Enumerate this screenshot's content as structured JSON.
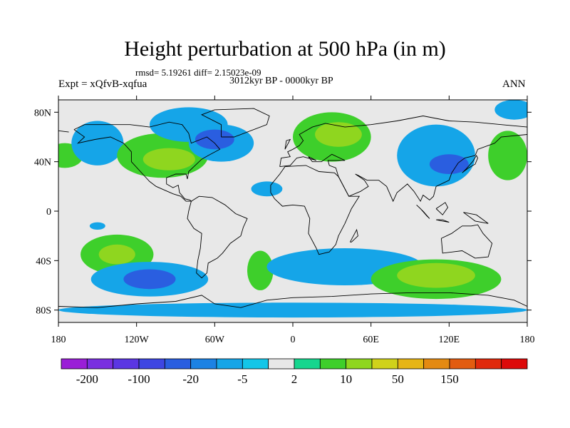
{
  "title": "Height perturbation at 500 hPa (in m)",
  "stats": "rmsd= 5.19261 diff= 2.15023e-09",
  "experiment": "Expt = xQfvB-xqfua",
  "period": "3012kyr BP - 0000kyr BP",
  "season": "ANN",
  "map": {
    "background_color": "#e8e8e8",
    "lon_range": [
      -180,
      180
    ],
    "lat_range": [
      -90,
      90
    ],
    "lon_ticks": [
      {
        "value": -180,
        "label": "180"
      },
      {
        "value": -120,
        "label": "120W"
      },
      {
        "value": -60,
        "label": "60W"
      },
      {
        "value": 0,
        "label": "0"
      },
      {
        "value": 60,
        "label": "60E"
      },
      {
        "value": 120,
        "label": "120E"
      },
      {
        "value": 180,
        "label": "180"
      }
    ],
    "lat_ticks": [
      {
        "value": 80,
        "label": "80N"
      },
      {
        "value": 40,
        "label": "40N"
      },
      {
        "value": 0,
        "label": "0"
      },
      {
        "value": -40,
        "label": "40S"
      },
      {
        "value": -80,
        "label": "80S"
      }
    ],
    "anomalies": [
      {
        "name": "north-pacific-west-positive",
        "lon": -175,
        "lat": 45,
        "rx": 14,
        "ry": 10,
        "level": 1
      },
      {
        "name": "north-pacific-negative",
        "lon": -150,
        "lat": 55,
        "rx": 20,
        "ry": 18,
        "level": -1
      },
      {
        "name": "north-america-positive",
        "lon": -100,
        "lat": 45,
        "rx": 35,
        "ry": 18,
        "level": 1
      },
      {
        "name": "north-america-positive-core",
        "lon": -95,
        "lat": 42,
        "rx": 20,
        "ry": 9,
        "level": 2
      },
      {
        "name": "arctic-canada-negative",
        "lon": -80,
        "lat": 70,
        "rx": 30,
        "ry": 14,
        "level": -1
      },
      {
        "name": "north-atlantic-negative",
        "lon": -55,
        "lat": 55,
        "rx": 25,
        "ry": 15,
        "level": -1
      },
      {
        "name": "north-atlantic-negative-core",
        "lon": -60,
        "lat": 58,
        "rx": 15,
        "ry": 8,
        "level": -2
      },
      {
        "name": "subtropical-atlantic-negative",
        "lon": -20,
        "lat": 18,
        "rx": 12,
        "ry": 6,
        "level": -1
      },
      {
        "name": "europe-positive",
        "lon": 30,
        "lat": 60,
        "rx": 30,
        "ry": 20,
        "level": 1
      },
      {
        "name": "europe-positive-core",
        "lon": 35,
        "lat": 62,
        "rx": 18,
        "ry": 10,
        "level": 2
      },
      {
        "name": "asia-negative",
        "lon": 110,
        "lat": 45,
        "rx": 30,
        "ry": 25,
        "level": -1
      },
      {
        "name": "asia-negative-core",
        "lon": 120,
        "lat": 38,
        "rx": 15,
        "ry": 8,
        "level": -2
      },
      {
        "name": "west-pacific-positive",
        "lon": 165,
        "lat": 45,
        "rx": 15,
        "ry": 20,
        "level": 1
      },
      {
        "name": "arctic-pacific-negative",
        "lon": 170,
        "lat": 82,
        "rx": 15,
        "ry": 8,
        "level": -1
      },
      {
        "name": "south-pacific-positive",
        "lon": -135,
        "lat": -35,
        "rx": 28,
        "ry": 16,
        "level": 1
      },
      {
        "name": "south-pacific-positive-core",
        "lon": -135,
        "lat": -35,
        "rx": 14,
        "ry": 8,
        "level": 2
      },
      {
        "name": "south-pacific-negative",
        "lon": -110,
        "lat": -55,
        "rx": 45,
        "ry": 14,
        "level": -1
      },
      {
        "name": "south-pacific-negative-core",
        "lon": -110,
        "lat": -55,
        "rx": 20,
        "ry": 8,
        "level": -2
      },
      {
        "name": "south-atlantic-positive",
        "lon": -25,
        "lat": -48,
        "rx": 10,
        "ry": 16,
        "level": 1
      },
      {
        "name": "southern-ocean-negative",
        "lon": 40,
        "lat": -45,
        "rx": 60,
        "ry": 15,
        "level": -1
      },
      {
        "name": "indian-ocean-positive",
        "lon": 110,
        "lat": -55,
        "rx": 50,
        "ry": 16,
        "level": 1
      },
      {
        "name": "indian-ocean-positive-core",
        "lon": 110,
        "lat": -52,
        "rx": 30,
        "ry": 10,
        "level": 2
      },
      {
        "name": "antarctic-negative",
        "lon": 0,
        "lat": -80,
        "rx": 180,
        "ry": 6,
        "level": -1
      },
      {
        "name": "tropical-pacific-negative",
        "lon": -150,
        "lat": -12,
        "rx": 6,
        "ry": 3,
        "level": -1
      }
    ]
  },
  "colorbar": {
    "colors": [
      "#9a1fd7",
      "#7a2fe0",
      "#5b36e3",
      "#3e46e2",
      "#2a5ee0",
      "#1c82e4",
      "#15a5e8",
      "#14c6e8",
      "#e8e8e8",
      "#16d68e",
      "#3ecf2b",
      "#8fd61f",
      "#d0d21b",
      "#e6b515",
      "#e48a12",
      "#e25c10",
      "#e02a0c",
      "#dd0a0a"
    ],
    "labels": [
      {
        "index": 1,
        "text": "-200"
      },
      {
        "index": 3,
        "text": "-100"
      },
      {
        "index": 5,
        "text": "-20"
      },
      {
        "index": 7,
        "text": "-5"
      },
      {
        "index": 9,
        "text": "2"
      },
      {
        "index": 11,
        "text": "10"
      },
      {
        "index": 13,
        "text": "50"
      },
      {
        "index": 15,
        "text": "150"
      }
    ]
  }
}
